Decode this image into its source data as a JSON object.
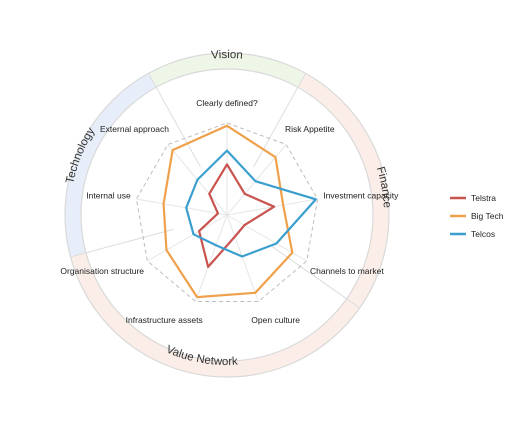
{
  "chart_data": {
    "type": "radar",
    "axes": [
      "Clearly defined?",
      "Risk Appetite",
      "Investment capacity",
      "Channels to market",
      "Open culture",
      "Infrastructure assets",
      "Organisation structure",
      "Internal use",
      "External approach"
    ],
    "sections": [
      {
        "name": "Vision",
        "color": "#eef6e8"
      },
      {
        "name": "Finance",
        "color": "#fbeee8"
      },
      {
        "name": "Value Network",
        "color": "#fbeee8"
      },
      {
        "name": "Technology",
        "color": "#e7eef9"
      }
    ],
    "series": [
      {
        "name": "Telstra",
        "color": "#c9534f",
        "values": [
          0.55,
          0.3,
          0.52,
          0.22,
          0.25,
          0.6,
          0.35,
          0.1,
          0.3
        ]
      },
      {
        "name": "Big Tech",
        "color": "#f0a04b",
        "values": [
          0.97,
          0.82,
          0.62,
          0.82,
          0.9,
          0.95,
          0.76,
          0.7,
          0.92
        ]
      },
      {
        "name": "Telcos",
        "color": "#3a9fcf",
        "values": [
          0.7,
          0.48,
          0.98,
          0.62,
          0.48,
          0.35,
          0.42,
          0.45,
          0.5
        ]
      }
    ],
    "rmax": 1,
    "grid": true,
    "legend_position": "right"
  }
}
